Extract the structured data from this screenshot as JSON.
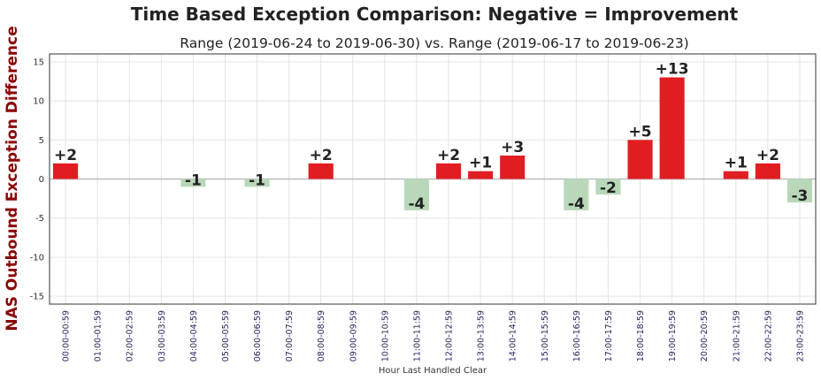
{
  "chart_data": {
    "type": "bar",
    "title": "Time Based Exception Comparison: Negative = Improvement",
    "subtitle": "Range (2019-06-24 to 2019-06-30) vs. Range (2019-06-17 to 2019-06-23)",
    "xlabel": "Hour Last Handled Clear",
    "ylabel": "NAS Outbound Exception Difference",
    "ylim": [
      -16,
      16
    ],
    "yticks": [
      -15,
      -10,
      -5,
      0,
      5,
      10,
      15
    ],
    "grid": true,
    "categories": [
      "00:00-00:59",
      "01:00-01:59",
      "02:00-02:59",
      "03:00-03:59",
      "04:00-04:59",
      "05:00-05:59",
      "06:00-06:59",
      "07:00-07:59",
      "08:00-08:59",
      "09:00-09:59",
      "10:00-10:59",
      "11:00-11:59",
      "12:00-12:59",
      "13:00-13:59",
      "14:00-14:59",
      "15:00-15:59",
      "16:00-16:59",
      "17:00-17:59",
      "18:00-18:59",
      "19:00-19:59",
      "20:00-20:59",
      "21:00-21:59",
      "22:00-22:59",
      "23:00-23:59"
    ],
    "values": [
      2,
      0,
      0,
      0,
      -1,
      0,
      -1,
      0,
      2,
      0,
      0,
      -4,
      2,
      1,
      3,
      0,
      -4,
      -2,
      5,
      13,
      0,
      1,
      2,
      -3
    ],
    "data_labels": [
      "+2",
      "",
      "",
      "",
      "-1",
      "",
      "-1",
      "",
      "+2",
      "",
      "",
      "-4",
      "+2",
      "+1",
      "+3",
      "",
      "-4",
      "-2",
      "+5",
      "+13",
      "",
      "+1",
      "+2",
      "-3"
    ],
    "colors": {
      "positive": "#e01e22",
      "negative": "#b9d8ba",
      "grid": "#e3e3e3",
      "zero_line": "#bbbbbb",
      "ylabel": "#8b0000",
      "xtick": "#2b2060"
    }
  }
}
